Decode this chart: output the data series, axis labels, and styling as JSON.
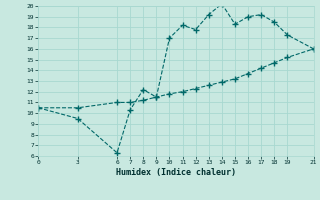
{
  "xlabel": "Humidex (Indice chaleur)",
  "bg_color": "#c8e8e0",
  "grid_color": "#a8d8d0",
  "line_color": "#006868",
  "xlim": [
    0,
    21
  ],
  "ylim": [
    6,
    20
  ],
  "xticks": [
    0,
    3,
    6,
    7,
    8,
    9,
    10,
    11,
    12,
    13,
    14,
    15,
    16,
    17,
    18,
    19,
    21
  ],
  "yticks": [
    6,
    7,
    8,
    9,
    10,
    11,
    12,
    13,
    14,
    15,
    16,
    17,
    18,
    19,
    20
  ],
  "series1_x": [
    0,
    3,
    6,
    7,
    8,
    9,
    10,
    11,
    12,
    13,
    14,
    15,
    16,
    17,
    18,
    19,
    21
  ],
  "series1_y": [
    10.5,
    9.5,
    6.3,
    10.3,
    12.2,
    11.5,
    17.0,
    18.2,
    17.8,
    19.2,
    20.2,
    18.3,
    19.0,
    19.2,
    18.5,
    17.3,
    16.0
  ],
  "series2_x": [
    0,
    3,
    6,
    7,
    8,
    9,
    10,
    11,
    12,
    13,
    14,
    15,
    16,
    17,
    18,
    19,
    21
  ],
  "series2_y": [
    10.5,
    10.5,
    11.0,
    11.0,
    11.2,
    11.5,
    11.8,
    12.0,
    12.3,
    12.6,
    12.9,
    13.2,
    13.7,
    14.2,
    14.7,
    15.2,
    16.0
  ]
}
